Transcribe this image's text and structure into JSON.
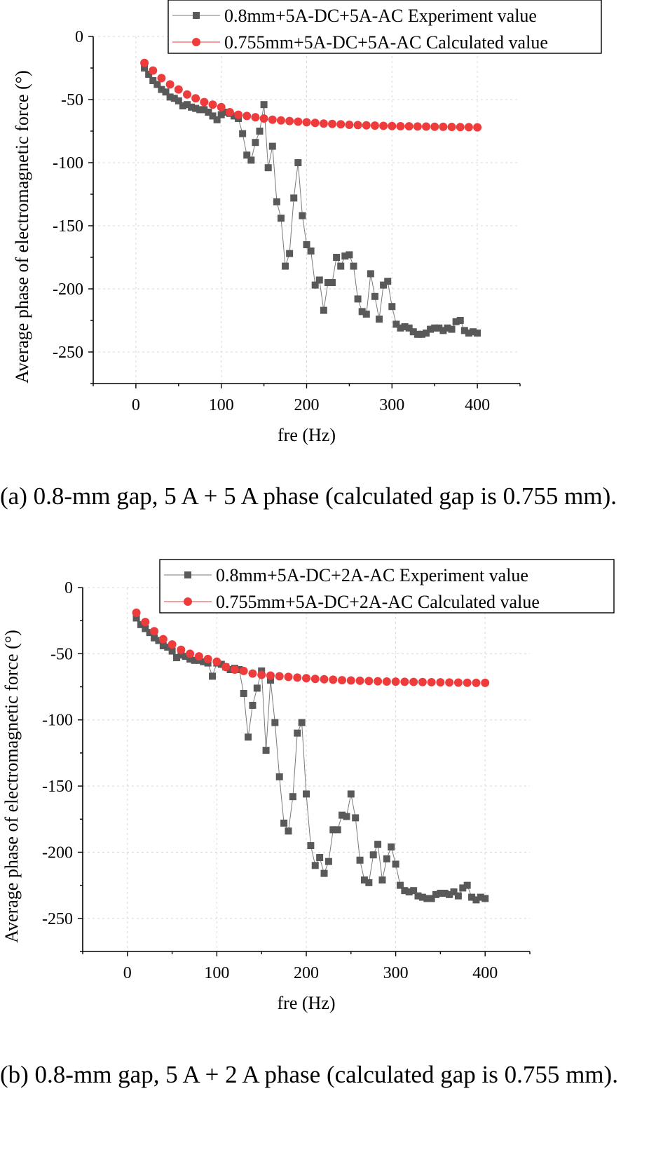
{
  "chart_data": [
    {
      "type": "scatter",
      "xlabel": "fre (Hz)",
      "ylabel": "Average phase of electromagnetic force (°)",
      "xlim": [
        -50,
        450
      ],
      "ylim": [
        -275,
        0
      ],
      "xticks": [
        0,
        100,
        200,
        300,
        400
      ],
      "yticks": [
        0,
        -50,
        -100,
        -150,
        -200,
        -250
      ],
      "grid": true,
      "legend": "top-right",
      "series": [
        {
          "name": "0.8mm+5A-DC+5A-AC Experiment value",
          "color": "#595959",
          "marker": "square",
          "line": true,
          "x": [
            10,
            15,
            20,
            25,
            30,
            35,
            40,
            45,
            50,
            55,
            60,
            65,
            70,
            75,
            80,
            85,
            90,
            95,
            100,
            105,
            110,
            115,
            120,
            125,
            130,
            135,
            140,
            145,
            150,
            155,
            160,
            165,
            170,
            175,
            180,
            185,
            190,
            195,
            200,
            205,
            210,
            215,
            220,
            225,
            230,
            235,
            240,
            245,
            250,
            255,
            260,
            265,
            270,
            275,
            280,
            285,
            290,
            295,
            300,
            305,
            310,
            315,
            320,
            325,
            330,
            335,
            340,
            345,
            350,
            355,
            360,
            365,
            370,
            375,
            380,
            385,
            390,
            395,
            400
          ],
          "y": [
            -25,
            -30,
            -35,
            -38,
            -42,
            -44,
            -48,
            -49,
            -51,
            -55,
            -54,
            -56,
            -57,
            -58,
            -58,
            -60,
            -63,
            -66,
            -62,
            -60,
            -61,
            -63,
            -65,
            -77,
            -94,
            -98,
            -84,
            -75,
            -54,
            -104,
            -87,
            -131,
            -144,
            -182,
            -172,
            -128,
            -100,
            -142,
            -165,
            -170,
            -197,
            -193,
            -217,
            -195,
            -195,
            -175,
            -182,
            -174,
            -173,
            -182,
            -208,
            -218,
            -220,
            -188,
            -206,
            -224,
            -197,
            -194,
            -214,
            -228,
            -231,
            -230,
            -231,
            -234,
            -236,
            -236,
            -235,
            -232,
            -231,
            -231,
            -233,
            -231,
            -232,
            -226,
            -225,
            -233,
            -235,
            -234,
            -235
          ]
        },
        {
          "name": "0.755mm+5A-DC+5A-AC Calculated value",
          "color": "#ee3b3b",
          "marker": "circle",
          "line": false,
          "x": [
            10,
            20,
            30,
            40,
            50,
            60,
            70,
            80,
            90,
            100,
            110,
            120,
            130,
            140,
            150,
            160,
            170,
            180,
            190,
            200,
            210,
            220,
            230,
            240,
            250,
            260,
            270,
            280,
            290,
            300,
            310,
            320,
            330,
            340,
            350,
            360,
            370,
            380,
            390,
            400
          ],
          "y": [
            -21,
            -27,
            -33,
            -38,
            -42,
            -46,
            -49,
            -52,
            -54,
            -56,
            -60,
            -62,
            -63,
            -64,
            -65,
            -66,
            -66.5,
            -67,
            -67.5,
            -68,
            -68.5,
            -69,
            -69.3,
            -69.6,
            -70,
            -70.2,
            -70.4,
            -70.6,
            -70.8,
            -71,
            -71.1,
            -71.2,
            -71.3,
            -71.4,
            -71.5,
            -71.6,
            -71.7,
            -71.8,
            -71.9,
            -72
          ]
        }
      ]
    },
    {
      "type": "scatter",
      "xlabel": "fre (Hz)",
      "ylabel": "Average phase of electromagnetic force (°)",
      "xlim": [
        -50,
        450
      ],
      "ylim": [
        -275,
        0
      ],
      "xticks": [
        0,
        100,
        200,
        300,
        400
      ],
      "yticks": [
        0,
        -50,
        -100,
        -150,
        -200,
        -250
      ],
      "grid": true,
      "legend": "top-right",
      "series": [
        {
          "name": "0.8mm+5A-DC+2A-AC Experiment value",
          "color": "#595959",
          "marker": "square",
          "line": true,
          "x": [
            10,
            15,
            20,
            25,
            30,
            35,
            40,
            45,
            50,
            55,
            60,
            65,
            70,
            75,
            80,
            85,
            90,
            95,
            100,
            105,
            110,
            115,
            120,
            125,
            130,
            135,
            140,
            145,
            150,
            155,
            160,
            165,
            170,
            175,
            180,
            185,
            190,
            195,
            200,
            205,
            210,
            215,
            220,
            225,
            230,
            235,
            240,
            245,
            250,
            255,
            260,
            265,
            270,
            275,
            280,
            285,
            290,
            295,
            300,
            305,
            310,
            315,
            320,
            325,
            330,
            335,
            340,
            345,
            350,
            355,
            360,
            365,
            370,
            375,
            380,
            385,
            390,
            395,
            400
          ],
          "y": [
            -23,
            -28,
            -31,
            -34,
            -38,
            -40,
            -44,
            -45,
            -48,
            -53,
            -51,
            -52,
            -54,
            -55,
            -55,
            -56,
            -57,
            -67,
            -57,
            -58,
            -60,
            -62,
            -61,
            -62,
            -80,
            -113,
            -89,
            -76,
            -63,
            -123,
            -70,
            -102,
            -143,
            -178,
            -184,
            -158,
            -110,
            -102,
            -156,
            -195,
            -210,
            -204,
            -216,
            -207,
            -183,
            -183,
            -172,
            -173,
            -156,
            -174,
            -206,
            -221,
            -223,
            -202,
            -194,
            -221,
            -205,
            -196,
            -209,
            -225,
            -229,
            -230,
            -229,
            -233,
            -234,
            -235,
            -235,
            -232,
            -231,
            -231,
            -232,
            -230,
            -233,
            -227,
            -225,
            -234,
            -236,
            -234,
            -235
          ]
        },
        {
          "name": "0.755mm+5A-DC+2A-AC Calculated value",
          "color": "#ee3b3b",
          "marker": "circle",
          "line": false,
          "x": [
            10,
            20,
            30,
            40,
            50,
            60,
            70,
            80,
            90,
            100,
            110,
            120,
            130,
            140,
            150,
            160,
            170,
            180,
            190,
            200,
            210,
            220,
            230,
            240,
            250,
            260,
            270,
            280,
            290,
            300,
            310,
            320,
            330,
            340,
            350,
            360,
            370,
            380,
            390,
            400
          ],
          "y": [
            -19,
            -26,
            -33,
            -39,
            -43,
            -47,
            -50,
            -52,
            -54,
            -56,
            -60,
            -62,
            -63,
            -65,
            -66,
            -66.5,
            -67,
            -67.5,
            -68,
            -68.5,
            -69,
            -69.3,
            -69.6,
            -70,
            -70.2,
            -70.4,
            -70.6,
            -70.8,
            -71,
            -71.1,
            -71.2,
            -71.3,
            -71.4,
            -71.5,
            -71.6,
            -71.7,
            -71.8,
            -71.9,
            -72,
            -72
          ]
        }
      ]
    }
  ],
  "captions": [
    "(a) 0.8-mm gap, 5 A + 5 A phase (calculated gap is 0.755 mm).",
    "(b) 0.8-mm gap, 5 A + 2 A phase (calculated gap is 0.755 mm)."
  ]
}
